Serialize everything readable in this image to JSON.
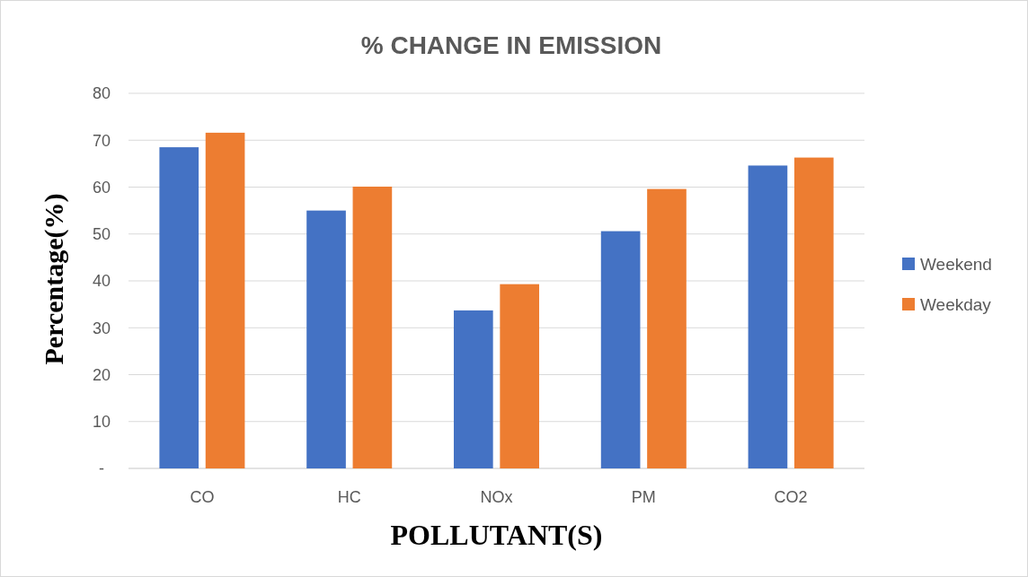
{
  "chart_data": {
    "type": "bar",
    "title": "% CHANGE IN EMISSION",
    "xlabel": "POLLUTANT(S)",
    "ylabel": "Percentage(%)",
    "categories": [
      "CO",
      "HC",
      "NOx",
      "PM",
      "CO2"
    ],
    "series": [
      {
        "name": "Weekend",
        "color": "#4472c4",
        "values": [
          68.5,
          55,
          33.7,
          50.6,
          64.6
        ]
      },
      {
        "name": "Weekday",
        "color": "#ed7d31",
        "values": [
          71.6,
          60.1,
          39.3,
          59.6,
          66.3
        ]
      }
    ],
    "ylim": [
      0,
      80
    ],
    "yticks": [
      {
        "value": 0,
        "label": "-"
      },
      10,
      20,
      30,
      40,
      50,
      60,
      70,
      80
    ],
    "grid": "y",
    "legend": "right"
  }
}
